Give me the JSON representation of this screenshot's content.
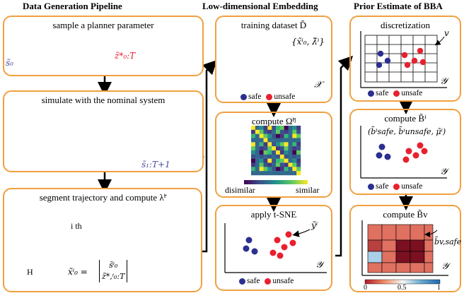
{
  "columns": [
    {
      "title": "Data Generation Pipeline"
    },
    {
      "title": "Low-dimensional Embedding"
    },
    {
      "title": "Prior Estimate of BBA"
    }
  ],
  "pipeline": {
    "sample_title": "sample a planner parameter",
    "s0_label": "s̃₀",
    "z_label": "z̃*₀:T",
    "simulate_title": "simulate with the nominal system",
    "s_traj_label": "s̃₁:T+1",
    "segment_title": "segment trajectory and compute λ̃ⁱ",
    "ith_label": "i th",
    "H_label": "H",
    "x0_eq": "x̃ⁱ₀ =",
    "vec_top": "s̃ⁱ₀",
    "vec_bot": "z̃*,ⁱ₀:T"
  },
  "embedding": {
    "training_title": "training dataset D̃",
    "set_label": "{x̃ⁱ₀, λ̃ⁱ}",
    "X_label": "𝒳",
    "compute_omega_title": "compute Ω̃ⁱʲ",
    "colorbar_left": "disimilar",
    "colorbar_right": "similar",
    "tsne_title": "apply t-SNE",
    "y_label": "ỹⁱ",
    "Y_label": "𝒴",
    "legend_safe": "safe",
    "legend_unsafe": "unsafe"
  },
  "bba": {
    "discretization_title": "discretization",
    "v_label": "v",
    "Y_label": "𝒴",
    "compute_B_title": "compute B̃ⁱ",
    "tuple_label": "(b̃ⁱsafe, b̃ⁱunsafe, μ̃ⁱ)",
    "compute_Bv_title": "compute B̃v",
    "bsafe_label": "b̃v,safe",
    "cb_ticks": [
      "0",
      "0.5",
      "1"
    ],
    "legend_safe": "safe",
    "legend_unsafe": "unsafe"
  },
  "colors": {
    "panel_border": "#f0a040",
    "safe": "#2b2f8f",
    "unsafe": "#e8202e",
    "traj_pink": "#f2a7a7",
    "traj_blue": "#4a4aa0"
  }
}
